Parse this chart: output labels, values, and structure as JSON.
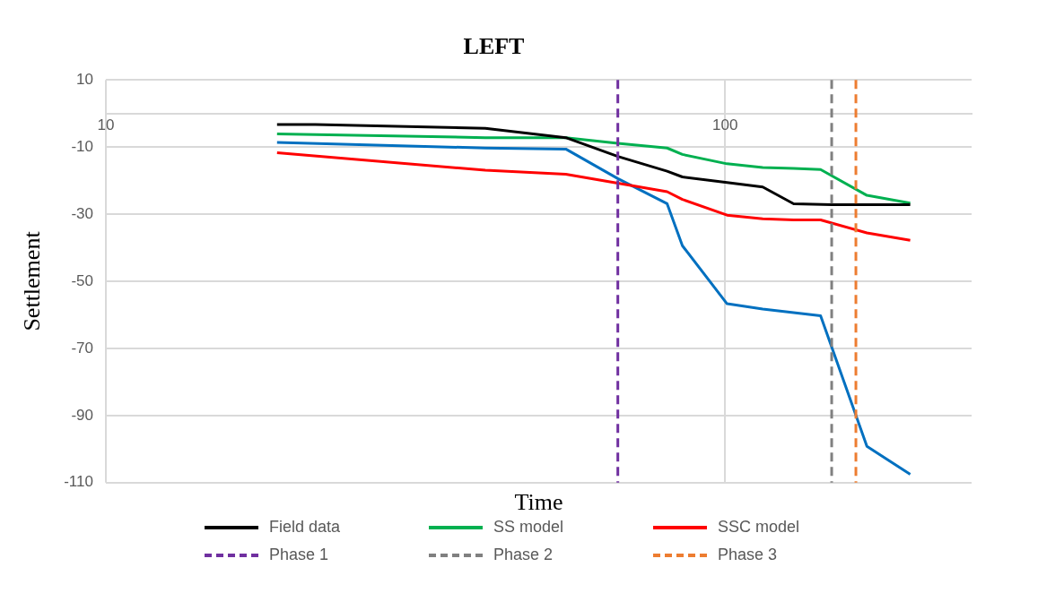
{
  "chart_data": {
    "type": "line",
    "title": "LEFT",
    "xlabel": "Time",
    "ylabel": "Settlement",
    "log": "x",
    "grid": true,
    "legend": "bottom",
    "line_style": "solid",
    "marker": "none",
    "xlim": [
      10,
      250
    ],
    "xticks": [
      10,
      100
    ],
    "ylim": [
      -110,
      10
    ],
    "yticks": [
      10,
      -10,
      -30,
      -50,
      -70,
      -90,
      -110
    ],
    "series": [
      {
        "name": "Field data",
        "color": "#000000",
        "x": [
          18.9,
          21.8,
          41.0,
          55.3,
          67.1,
          80.6,
          85.3,
          100.7,
          115,
          129,
          148.6,
          199
        ],
        "values": [
          -3.3,
          -3.3,
          -4.4,
          -7.2,
          -12.8,
          -17.2,
          -18.9,
          -20.6,
          -21.9,
          -26.9,
          -27.2,
          -27.2
        ]
      },
      {
        "name": "SS model",
        "color": "#00b050",
        "x": [
          18.9,
          41.0,
          55.3,
          67.1,
          80.6,
          85.3,
          100.7,
          115,
          129,
          142.6,
          169.4,
          199
        ],
        "values": [
          -6.1,
          -7.2,
          -7.2,
          -8.9,
          -10.3,
          -12.2,
          -15,
          -16.1,
          -16.4,
          -16.7,
          -24.4,
          -26.7
        ]
      },
      {
        "name": "SSC model",
        "color": "#ff0000",
        "x": [
          18.9,
          41.0,
          55.3,
          67.1,
          80.6,
          85.3,
          100.7,
          115,
          129,
          142.6,
          169.4,
          199
        ],
        "values": [
          -11.7,
          -16.9,
          -18.1,
          -20.8,
          -23.3,
          -25.6,
          -30.3,
          -31.4,
          -31.7,
          -31.7,
          -35.6,
          -37.8
        ]
      },
      {
        "color": "#0070c0",
        "x": [
          18.9,
          41.0,
          55.3,
          67.1,
          80.6,
          85.3,
          100.7,
          115,
          142.6,
          169.4,
          199
        ],
        "values": [
          -8.6,
          -10.3,
          -10.6,
          -19.4,
          -26.9,
          -39.4,
          -56.7,
          -58.3,
          -60.3,
          -99.2,
          -107.5
        ]
      }
    ],
    "ref_lines": [
      {
        "axis": "x",
        "value": 67.1,
        "label": "Phase 1",
        "color": "#7030a0",
        "line_style": "dashed"
      },
      {
        "axis": "x",
        "value": 148.6,
        "label": "Phase 2",
        "color": "#808080",
        "line_style": "dashed"
      },
      {
        "axis": "x",
        "value": 162.6,
        "label": "Phase 3",
        "color": "#ed7d31",
        "line_style": "dashed"
      }
    ]
  }
}
